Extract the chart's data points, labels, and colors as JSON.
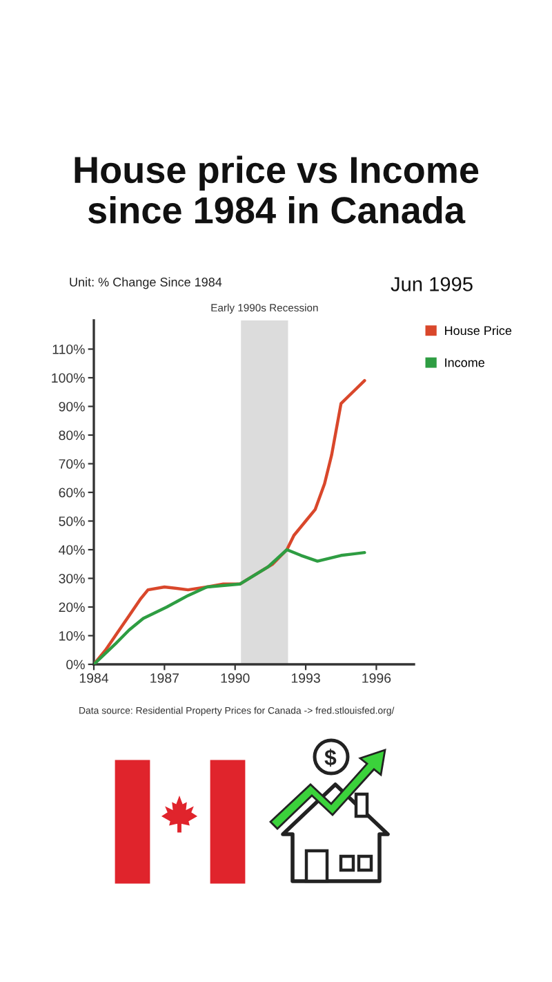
{
  "chart_data": {
    "type": "line",
    "title": "House price vs Income\nsince 1984 in Canada",
    "subtitle": "Unit: % Change Since 1984",
    "annotations": [
      "Jun 1995",
      "Data source: Residential Property Prices for Canada -> fred.stlouisfed.org/"
    ],
    "xlim": [
      1984,
      1997.6
    ],
    "xticks": [
      1984,
      1987,
      1990,
      1993,
      1996
    ],
    "ylim": [
      0,
      120
    ],
    "yticks": [
      {
        "value": 0,
        "label": "0%"
      },
      {
        "value": 10,
        "label": "10%"
      },
      {
        "value": 20,
        "label": "20%"
      },
      {
        "value": 30,
        "label": "30%"
      },
      {
        "value": 40,
        "label": "40%"
      },
      {
        "value": 50,
        "label": "50%"
      },
      {
        "value": 60,
        "label": "60%"
      },
      {
        "value": 70,
        "label": "70%"
      },
      {
        "value": 80,
        "label": "80%"
      },
      {
        "value": 90,
        "label": "90%"
      },
      {
        "value": 100,
        "label": "100%"
      },
      {
        "value": 110,
        "label": "110%"
      }
    ],
    "series": [
      {
        "name": "House Price",
        "color": "#d9472b",
        "x": [
          1984,
          1984.5,
          1985,
          1985.5,
          1986,
          1986.3,
          1987,
          1988,
          1988.8,
          1989.5,
          1990.2,
          1991,
          1991.6,
          1992.2,
          1992.5,
          1993,
          1993.4,
          1993.8,
          1994.1,
          1994.5,
          1995,
          1995.5
        ],
        "values": [
          0,
          5,
          11,
          17,
          23,
          26,
          27,
          26,
          27,
          28,
          28,
          32,
          35,
          40,
          45,
          50,
          54,
          63,
          73,
          91,
          95,
          99
        ]
      },
      {
        "name": "Income",
        "color": "#2e9d42",
        "x": [
          1984,
          1984.9,
          1985.5,
          1986.1,
          1987.1,
          1988,
          1988.8,
          1990.2,
          1991.4,
          1992.2,
          1992.8,
          1993.5,
          1994.5,
          1995.5
        ],
        "values": [
          0,
          7,
          12,
          16,
          20,
          24,
          27,
          28,
          34,
          40,
          38,
          36,
          38,
          39
        ]
      }
    ],
    "bands": [
      {
        "axis": "x",
        "from": 1990.25,
        "to": 1992.25,
        "label": "Early 1990s Recession",
        "color": "#dcdcdc"
      }
    ],
    "legend": "top right"
  }
}
